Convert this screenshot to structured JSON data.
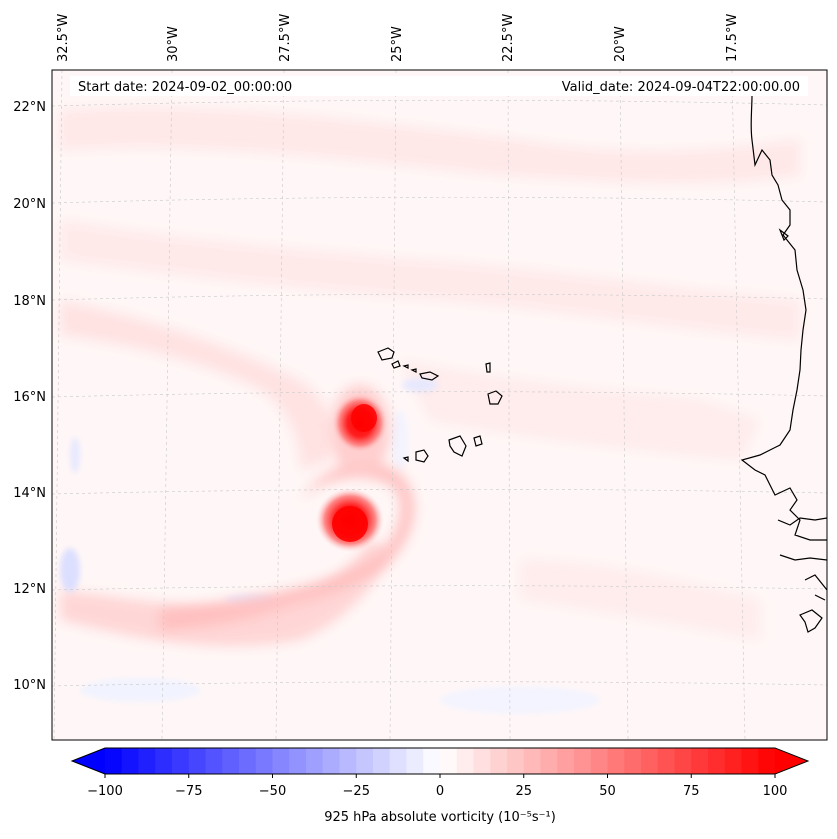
{
  "annotations": {
    "start_date": "Start date: 2024-09-02_00:00:00",
    "valid_date": "Valid_date: 2024-09-04T22:00:00.00"
  },
  "map": {
    "lon_ticks": [
      "32.5°W",
      "30°W",
      "27.5°W",
      "25°W",
      "22.5°W",
      "20°W",
      "17.5°W"
    ],
    "lat_ticks": [
      "22°N",
      "20°N",
      "18°N",
      "16°N",
      "14°N",
      "12°N",
      "10°N"
    ],
    "background_color": "#fff7f7",
    "weak_positive_color": "#ffe4e4",
    "moderate_positive_color": "#ffb3b3",
    "strong_positive_color": "#ff0000",
    "weak_negative_color": "#eef0ff",
    "coastline_color": "#000000"
  },
  "colorbar": {
    "label": "925 hPa absolute vorticity (10⁻⁵s⁻¹)",
    "ticks": [
      "−100",
      "−75",
      "−50",
      "−25",
      "0",
      "25",
      "50",
      "75",
      "100"
    ],
    "min": -100,
    "max": 100,
    "levels": 40,
    "extend": "both",
    "colormap": "bwr"
  }
}
